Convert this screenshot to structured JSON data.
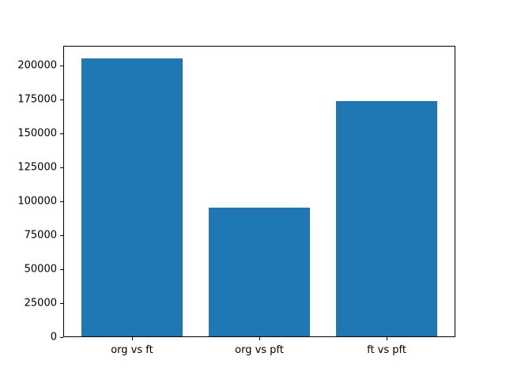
{
  "chart_data": {
    "type": "bar",
    "title": "",
    "xlabel": "",
    "ylabel": "",
    "categories": [
      "org vs ft",
      "org vs pft",
      "ft vs pft"
    ],
    "values": [
      204800,
      95000,
      173000
    ],
    "yticks": [
      0,
      25000,
      50000,
      75000,
      100000,
      125000,
      150000,
      175000,
      200000
    ],
    "ytick_labels": [
      "0",
      "25000",
      "50000",
      "75000",
      "100000",
      "125000",
      "150000",
      "175000",
      "200000"
    ],
    "ylim": [
      0,
      214500
    ],
    "bar_color": "#1f77b4",
    "axis_color": "#000000",
    "background_color": "#ffffff",
    "grid": false,
    "legend": null
  }
}
